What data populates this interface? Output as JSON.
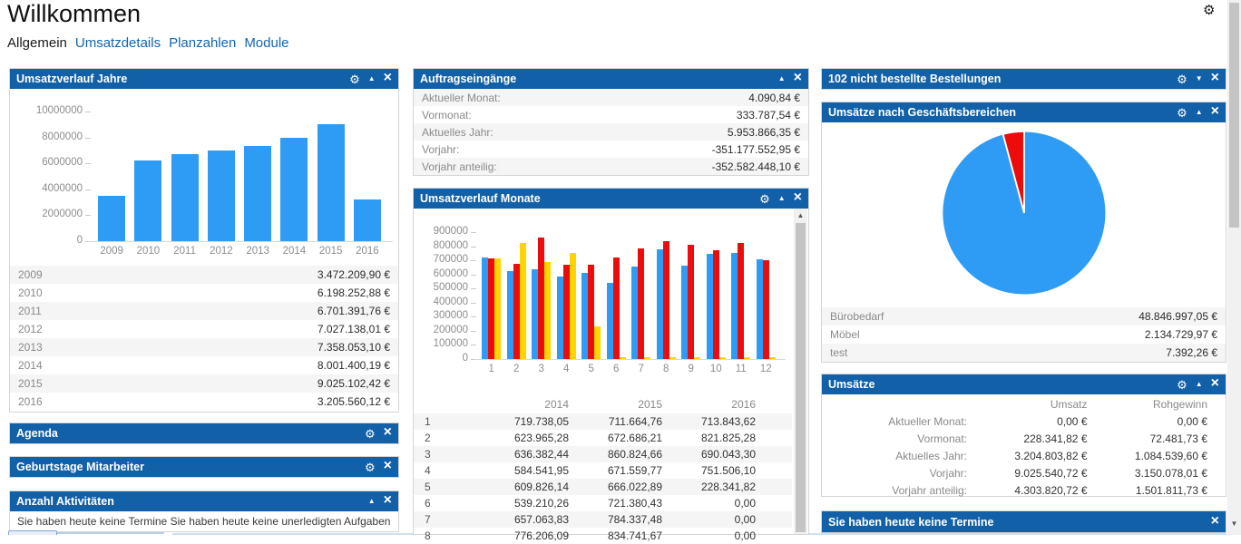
{
  "page": {
    "title": "Willkommen"
  },
  "icons": {
    "gear": "⚙",
    "up": "▲",
    "down": "▼",
    "close": "×"
  },
  "colors": {
    "header_blue": "#1160A8",
    "link_blue": "#1565AE",
    "bar_blue": "#2E9CF4",
    "bar_red": "#ED0C0C",
    "bar_yellow": "#FFD400"
  },
  "nav": {
    "tabs": [
      {
        "label": "Allgemein",
        "active": true
      },
      {
        "label": "Umsatzdetails",
        "active": false
      },
      {
        "label": "Planzahlen",
        "active": false
      },
      {
        "label": "Module",
        "active": false
      }
    ]
  },
  "panels": {
    "jahre": {
      "title": "Umsatzverlauf Jahre",
      "rows": [
        [
          "2009",
          "3.472.209,90 €"
        ],
        [
          "2010",
          "6.198.252,88 €"
        ],
        [
          "2011",
          "6.701.391,76 €"
        ],
        [
          "2012",
          "7.027.138,01 €"
        ],
        [
          "2013",
          "7.358.053,10 €"
        ],
        [
          "2014",
          "8.001.400,19 €"
        ],
        [
          "2015",
          "9.025.102,42 €"
        ],
        [
          "2016",
          "3.205.560,12 €"
        ]
      ]
    },
    "agenda": {
      "title": "Agenda"
    },
    "geburtstage": {
      "title": "Geburtstage Mitarbeiter"
    },
    "aktivitaeten": {
      "title": "Anzahl Aktivitäten",
      "body": "Sie haben heute keine Termine Sie haben heute keine unerledigten Aufgaben"
    },
    "auftraege": {
      "title": "Auftragseingänge",
      "rows": [
        [
          "Aktueller Monat:",
          "4.090,84 €"
        ],
        [
          "Vormonat:",
          "333.787,54 €"
        ],
        [
          "Aktuelles Jahr:",
          "5.953.866,35 €"
        ],
        [
          "Vorjahr:",
          "-351.177.552,95 €"
        ],
        [
          "Vorjahr anteilig:",
          "-352.582.448,10 €"
        ]
      ]
    },
    "monate": {
      "title": "Umsatzverlauf Monate",
      "table": {
        "columns": [
          "2014",
          "2015",
          "2016"
        ],
        "rows": [
          [
            "1",
            "719.738,05",
            "711.664,76",
            "713.843,62"
          ],
          [
            "2",
            "623.965,28",
            "672.686,21",
            "821.825,28"
          ],
          [
            "3",
            "636.382,44",
            "860.824,66",
            "690.043,30"
          ],
          [
            "4",
            "584.541,95",
            "671.559,77",
            "751.506,10"
          ],
          [
            "5",
            "609.826,14",
            "666.022,89",
            "228.341,82"
          ],
          [
            "6",
            "539.210,26",
            "721.380,43",
            "0,00"
          ],
          [
            "7",
            "657.063,83",
            "784.337,48",
            "0,00"
          ],
          [
            "8",
            "776.206,09",
            "834.741,67",
            "0,00"
          ]
        ]
      }
    },
    "bestellungen": {
      "title": "102 nicht bestellte Bestellungen"
    },
    "bereiche": {
      "title": "Umsätze nach Geschäftsbereichen",
      "legend": [
        [
          "Bürobedarf",
          "48.846.997,05 €"
        ],
        [
          "Möbel",
          "2.134.729,97 €"
        ],
        [
          "test",
          "7.392,26 €"
        ]
      ]
    },
    "umsaetze": {
      "title": "Umsätze",
      "columns": [
        "Umsatz",
        "Rohgewinn"
      ],
      "rows": [
        [
          "Aktueller Monat:",
          "0,00 €",
          "0,00 €"
        ],
        [
          "Vormonat:",
          "228.341,82 €",
          "72.481,73 €"
        ],
        [
          "Aktuelles Jahr:",
          "3.204.803,82 €",
          "1.084.539,60 €"
        ],
        [
          "Vorjahr:",
          "9.025.540,72 €",
          "3.150.078,01 €"
        ],
        [
          "Vorjahr anteilig:",
          "4.303.820,72 €",
          "1.501.811,73 €"
        ]
      ]
    },
    "termine": {
      "title": "Sie haben heute keine Termine"
    }
  },
  "chart_data": [
    {
      "id": "jahre",
      "type": "bar",
      "title": "Umsatzverlauf Jahre",
      "categories": [
        "2009",
        "2010",
        "2011",
        "2012",
        "2013",
        "2014",
        "2015",
        "2016"
      ],
      "values": [
        3472209.9,
        6198252.88,
        6701391.76,
        7027138.01,
        7358053.1,
        8001400.19,
        9025102.42,
        3205560.12
      ],
      "ylim": [
        0,
        10000000
      ],
      "yticks": [
        0,
        2000000,
        4000000,
        6000000,
        8000000,
        10000000
      ],
      "bar_color": "#2E9CF4"
    },
    {
      "id": "monate",
      "type": "bar",
      "title": "Umsatzverlauf Monate",
      "categories": [
        "1",
        "2",
        "3",
        "4",
        "5",
        "6",
        "7",
        "8",
        "9",
        "10",
        "11",
        "12"
      ],
      "series": [
        {
          "name": "2014",
          "color": "#2E9CF4",
          "values": [
            719738.05,
            623965.28,
            636382.44,
            584541.95,
            609826.14,
            539210.26,
            657063.83,
            776206.09,
            660000,
            745000,
            755000,
            705000
          ]
        },
        {
          "name": "2015",
          "color": "#ED0C0C",
          "values": [
            711664.76,
            672686.21,
            860824.66,
            671559.77,
            666022.89,
            721380.43,
            784337.48,
            834741.67,
            810000,
            770000,
            825000,
            700000
          ]
        },
        {
          "name": "2016",
          "color": "#FFD400",
          "values": [
            713843.62,
            821825.28,
            690043.3,
            751506.1,
            228341.82,
            0,
            0,
            0,
            0,
            0,
            0,
            0
          ]
        }
      ],
      "ylim": [
        0,
        900000
      ],
      "yticks": [
        0,
        100000,
        200000,
        300000,
        400000,
        500000,
        600000,
        700000,
        800000,
        900000
      ]
    },
    {
      "id": "bereiche",
      "type": "pie",
      "title": "Umsätze nach Geschäftsbereichen",
      "slices": [
        {
          "label": "Bürobedarf",
          "value": 48846997.05,
          "color": "#2E9CF4"
        },
        {
          "label": "Möbel",
          "value": 2134729.97,
          "color": "#ED0C0C"
        },
        {
          "label": "test",
          "value": 7392.26,
          "color": "#FFD400"
        }
      ]
    }
  ]
}
